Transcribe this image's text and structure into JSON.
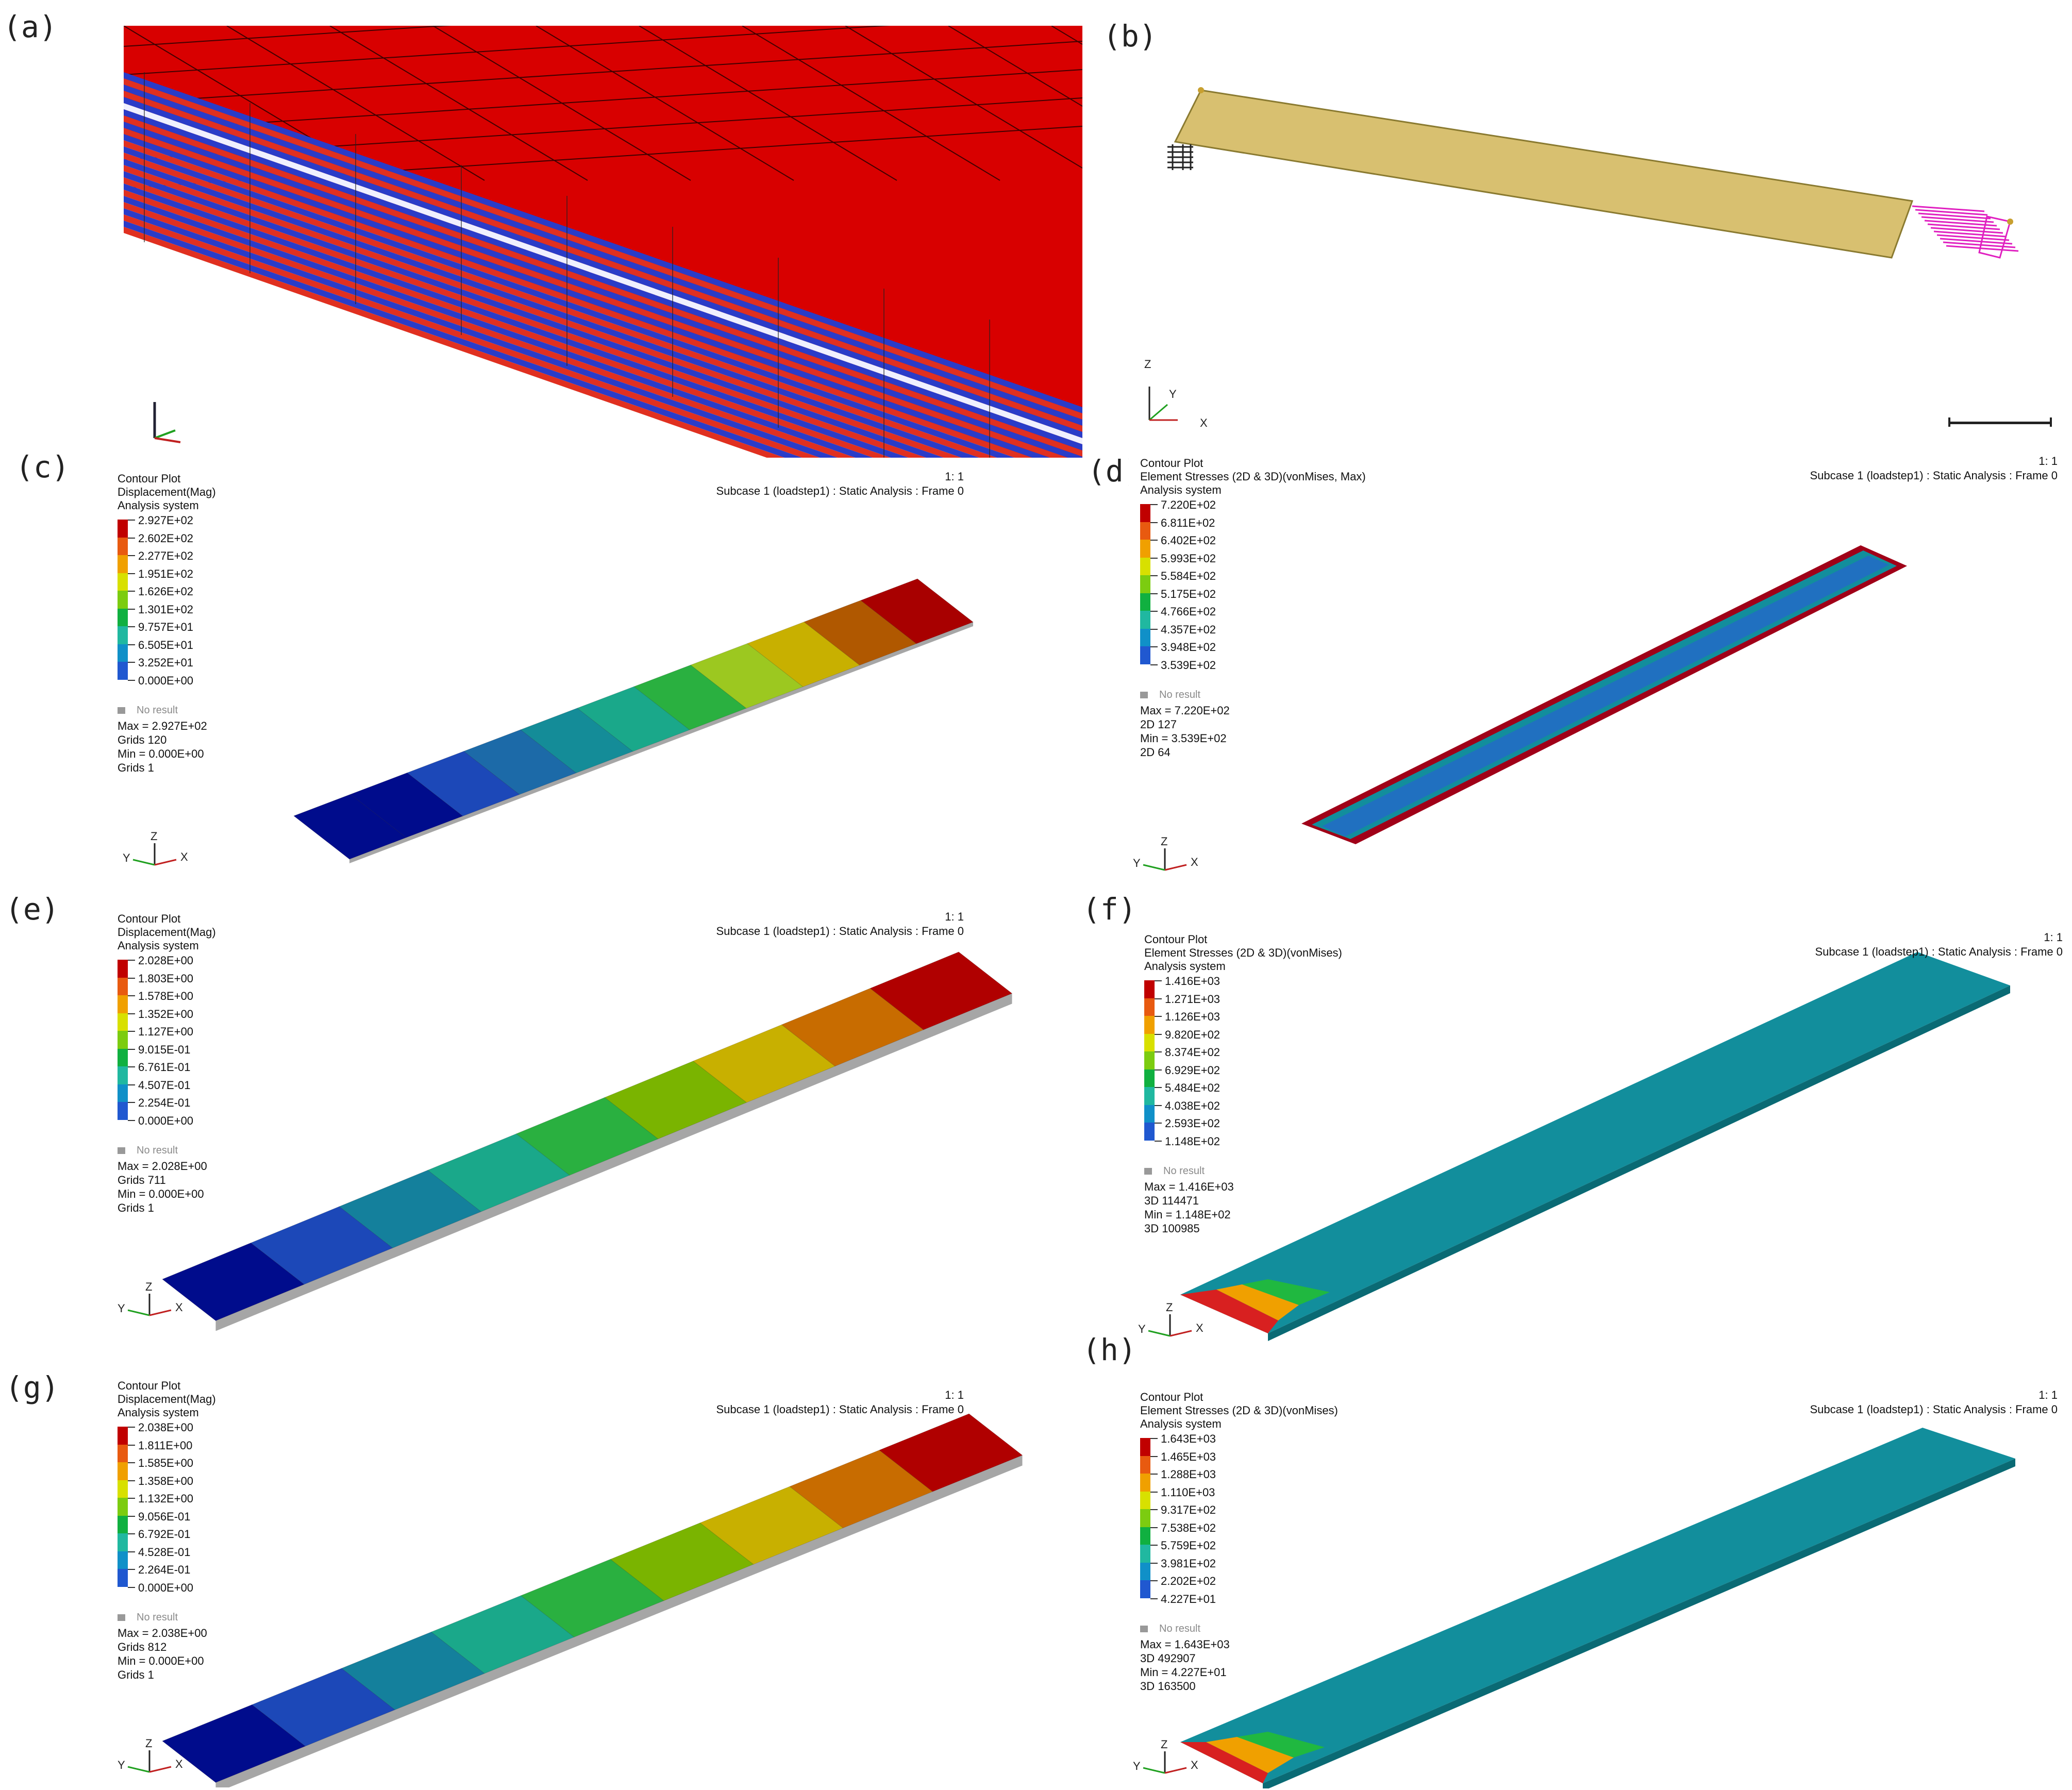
{
  "panels": {
    "a": {
      "label": "(a)"
    },
    "b": {
      "label": "(b)",
      "axis": {
        "z": "Z",
        "y": "Y",
        "x": "X"
      }
    },
    "c": {
      "label": "(c)",
      "scale": "1: 1",
      "subcase": "Subcase 1 (loadstep1) : Static Analysis : Frame 0",
      "header": [
        "Contour Plot",
        "Displacement(Mag)",
        "Analysis system"
      ],
      "legend": [
        "2.927E+02",
        "2.602E+02",
        "2.277E+02",
        "1.951E+02",
        "1.626E+02",
        "1.301E+02",
        "9.757E+01",
        "6.505E+01",
        "3.252E+01",
        "0.000E+00"
      ],
      "no_result": "No result",
      "stats": [
        "Max = 2.927E+02",
        "Grids 120",
        "Min = 0.000E+00",
        "Grids 1"
      ],
      "axis": {
        "z": "Z",
        "y": "Y",
        "x": "X"
      }
    },
    "d": {
      "label": "(d)",
      "scale": "1: 1",
      "subcase": "Subcase 1 (loadstep1) : Static Analysis : Frame 0",
      "header": [
        "Contour Plot",
        "Element Stresses (2D & 3D)(vonMises, Max)",
        "Analysis system"
      ],
      "legend": [
        "7.220E+02",
        "6.811E+02",
        "6.402E+02",
        "5.993E+02",
        "5.584E+02",
        "5.175E+02",
        "4.766E+02",
        "4.357E+02",
        "3.948E+02",
        "3.539E+02"
      ],
      "no_result": "No result",
      "stats": [
        "Max = 7.220E+02",
        "2D 127",
        "Min = 3.539E+02",
        "2D 64"
      ],
      "axis": {
        "z": "Z",
        "y": "Y",
        "x": "X"
      }
    },
    "e": {
      "label": "(e)",
      "scale": "1: 1",
      "subcase": "Subcase 1 (loadstep1) : Static Analysis : Frame 0",
      "header": [
        "Contour Plot",
        "Displacement(Mag)",
        "Analysis system"
      ],
      "legend": [
        "2.028E+00",
        "1.803E+00",
        "1.578E+00",
        "1.352E+00",
        "1.127E+00",
        "9.015E-01",
        "6.761E-01",
        "4.507E-01",
        "2.254E-01",
        "0.000E+00"
      ],
      "no_result": "No result",
      "stats": [
        "Max = 2.028E+00",
        "Grids 711",
        "Min = 0.000E+00",
        "Grids 1"
      ],
      "axis": {
        "z": "Z",
        "y": "Y",
        "x": "X"
      }
    },
    "f": {
      "label": "(f)",
      "scale": "1: 1",
      "subcase": "Subcase 1 (loadstep1) : Static Analysis : Frame 0",
      "header": [
        "Contour Plot",
        "Element Stresses (2D & 3D)(vonMises)",
        "Analysis system"
      ],
      "legend": [
        "1.416E+03",
        "1.271E+03",
        "1.126E+03",
        "9.820E+02",
        "8.374E+02",
        "6.929E+02",
        "5.484E+02",
        "4.038E+02",
        "2.593E+02",
        "1.148E+02"
      ],
      "no_result": "No result",
      "stats": [
        "Max = 1.416E+03",
        "3D 114471",
        "Min = 1.148E+02",
        "3D 100985"
      ],
      "axis": {
        "z": "Z",
        "y": "Y",
        "x": "X"
      }
    },
    "g": {
      "label": "(g)",
      "scale": "1: 1",
      "subcase": "Subcase 1 (loadstep1) : Static Analysis : Frame 0",
      "header": [
        "Contour Plot",
        "Displacement(Mag)",
        "Analysis system"
      ],
      "legend": [
        "2.038E+00",
        "1.811E+00",
        "1.585E+00",
        "1.358E+00",
        "1.132E+00",
        "9.056E-01",
        "6.792E-01",
        "4.528E-01",
        "2.264E-01",
        "0.000E+00"
      ],
      "no_result": "No result",
      "stats": [
        "Max = 2.038E+00",
        "Grids 812",
        "Min = 0.000E+00",
        "Grids 1"
      ],
      "axis": {
        "z": "Z",
        "y": "Y",
        "x": "X"
      }
    },
    "h": {
      "label": "(h)",
      "scale": "1: 1",
      "subcase": "Subcase 1 (loadstep1) : Static Analysis : Frame 0",
      "header": [
        "Contour Plot",
        "Element Stresses (2D & 3D)(vonMises)",
        "Analysis system"
      ],
      "legend": [
        "1.643E+03",
        "1.465E+03",
        "1.288E+03",
        "1.110E+03",
        "9.317E+02",
        "7.538E+02",
        "5.759E+02",
        "3.981E+02",
        "2.202E+02",
        "4.227E+01"
      ],
      "no_result": "No result",
      "stats": [
        "Max = 1.643E+03",
        "3D 492907",
        "Min = 4.227E+01",
        "3D 163500"
      ],
      "axis": {
        "z": "Z",
        "y": "Y",
        "x": "X"
      }
    }
  },
  "colors": {
    "legend": [
      "#c00000",
      "#e85a10",
      "#f0a000",
      "#d8e000",
      "#7ccc10",
      "#10b040",
      "#20b8a0",
      "#1090c8",
      "#2058d0",
      "#000c8c"
    ],
    "beam_c": [
      "#000c8c",
      "#000c8c",
      "#1c48b8",
      "#1c6aa8",
      "#148c98",
      "#1aa88a",
      "#2ab040",
      "#9cc820",
      "#c8b000",
      "#b05800",
      "#a80000"
    ],
    "beam_e": [
      "#000c8c",
      "#1c48b8",
      "#14809c",
      "#1aa88a",
      "#2ab040",
      "#7ab400",
      "#c8b000",
      "#c86c00",
      "#b00000"
    ],
    "stress_body": "#128e9c",
    "stress_edge": "#a00018",
    "stress_mid": "#2070c0",
    "mesh_red": "#d80000",
    "ply_blue": "#2a3cc8",
    "ply_red": "#e03020",
    "panel_b_plate": "#d8c070",
    "panel_b_mag": "#e020c0"
  }
}
